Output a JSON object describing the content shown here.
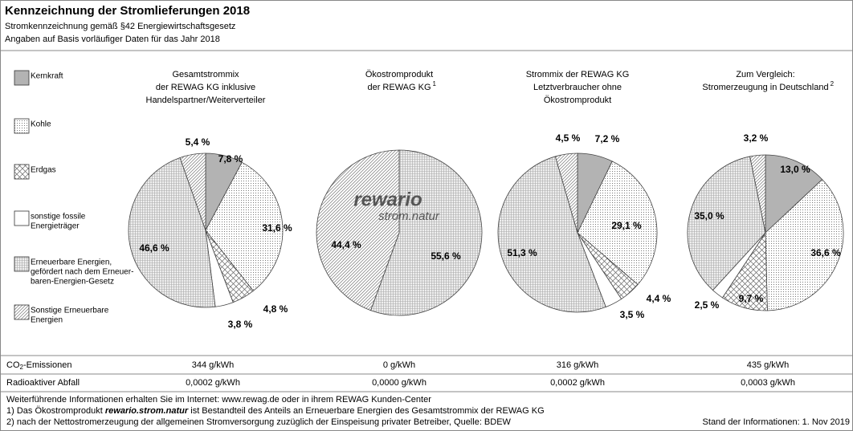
{
  "header": {
    "title": "Kennzeichnung der Stromlieferungen 2018",
    "subtitle": "Stromkennzeichnung gemäß §42 Energiewirtschaftsgesetz",
    "note": "Angaben auf Basis vorläufiger Daten für das Jahr 2018"
  },
  "legend": [
    {
      "name": [
        "Kernkraft"
      ]
    },
    {
      "name": [
        "Kohle"
      ]
    },
    {
      "name": [
        "Erdgas"
      ]
    },
    {
      "name": [
        "sonstige fossile",
        "Energieträger"
      ]
    },
    {
      "name": [
        "Erneuerbare Energien,",
        "gefördert nach dem Erneuer-",
        "baren-Energien-Gesetz"
      ]
    },
    {
      "name": [
        "Sonstige Erneuerbare",
        "Energien"
      ]
    }
  ],
  "chart_data": [
    {
      "type": "pie",
      "title": [
        "Gesamtstrommix",
        "der REWAG KG inklusive",
        "Handelspartner/Weiterverteiler"
      ],
      "values": [
        7.8,
        31.6,
        4.8,
        3.8,
        46.6,
        5.4
      ],
      "value_labels": [
        "7,8 %",
        "31,6 %",
        "4,8 %",
        "3,8 %",
        "46,6 %",
        "5,4 %"
      ]
    },
    {
      "type": "pie",
      "title": [
        "Ökostromprodukt",
        "der REWAG KG"
      ],
      "title_sup": "1",
      "logo": [
        "rewario",
        "strom.natur"
      ],
      "values": [
        null,
        null,
        null,
        null,
        55.6,
        44.4
      ],
      "value_labels": [
        null,
        null,
        null,
        null,
        "55,6 %",
        "44,4 %"
      ]
    },
    {
      "type": "pie",
      "title": [
        "Strommix der REWAG KG",
        "Letztverbraucher ohne",
        "Ökostromprodukt"
      ],
      "values": [
        7.2,
        29.1,
        4.4,
        3.5,
        51.3,
        4.5
      ],
      "value_labels": [
        "7,2 %",
        "29,1 %",
        "4,4 %",
        "3,5 %",
        "51,3 %",
        "4,5 %"
      ]
    },
    {
      "type": "pie",
      "title": [
        "Zum Vergleich:",
        "Stromerzeugung in Deutschland"
      ],
      "title_sup": "2",
      "values": [
        13.0,
        36.6,
        9.7,
        2.5,
        35.0,
        3.2
      ],
      "value_labels": [
        "13,0 %",
        "36,6 %",
        "9,7 %",
        "2,5 %",
        "35,0 %",
        "3,2 %"
      ]
    }
  ],
  "table": {
    "rows": [
      {
        "label": [
          "CO",
          "2",
          "-Emissionen"
        ],
        "cells": [
          "344 g/kWh",
          "0 g/kWh",
          "316 g/kWh",
          "435 g/kWh"
        ]
      },
      {
        "label": [
          "Radioaktiver Abfall"
        ],
        "cells": [
          "0,0002 g/kWh",
          "0,0000 g/kWh",
          "0,0002 g/kWh",
          "0,0003 g/kWh"
        ]
      }
    ]
  },
  "footnotes": {
    "info": "Weiterführende Informationen erhalten Sie im Internet: www.rewag.de oder in ihrem REWAG Kunden-Center",
    "note1": [
      "1) Das Ökostromprodukt ",
      "rewario.strom.natur",
      " ist Bestandteil des Anteils an Erneuerbare Energien des Gesamtstrommix der REWAG KG"
    ],
    "note2": "2) nach der Nettostromerzeugung der allgemeinen Stromversorgung zuzüglich der Einspeisung privater Betreiber, Quelle: BDEW",
    "stand": "Stand der Informationen: 1. Nov 2019"
  }
}
